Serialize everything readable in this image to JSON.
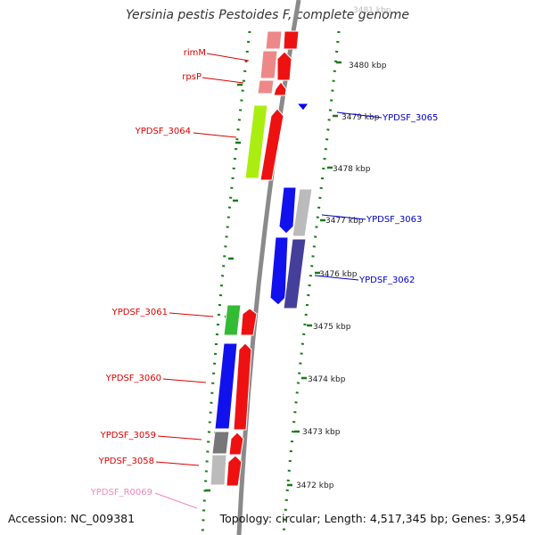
{
  "title": "Yersinia pestis Pestoides F, complete genome",
  "footer": {
    "accession": "Accession: NC_009381",
    "stats": "Topology: circular; Length: 4,517,345 bp; Genes: 3,954"
  },
  "colors": {
    "backbone": "#8a8a8a",
    "ticks": "#1a7a1a",
    "label_red": "#dd0000",
    "label_blue": "#0000cc",
    "label_pink": "#ee88bb"
  },
  "scale_labels": [
    "3481 kbp",
    "3480 kbp",
    "3479 kbp",
    "3478 kbp",
    "3477 kbp",
    "3476 kbp",
    "3475 kbp",
    "3474 kbp",
    "3473 kbp",
    "3472 kbp"
  ],
  "left_gene_labels": [
    "rimM",
    "rpsP",
    "YPDSF_3064",
    "YPDSF_3061",
    "YPDSF_3060",
    "YPDSF_3059",
    "YPDSF_3058",
    "YPDSF_R0069"
  ],
  "right_gene_labels": [
    "YPDSF_3065",
    "YPDSF_3063",
    "YPDSF_3062"
  ]
}
